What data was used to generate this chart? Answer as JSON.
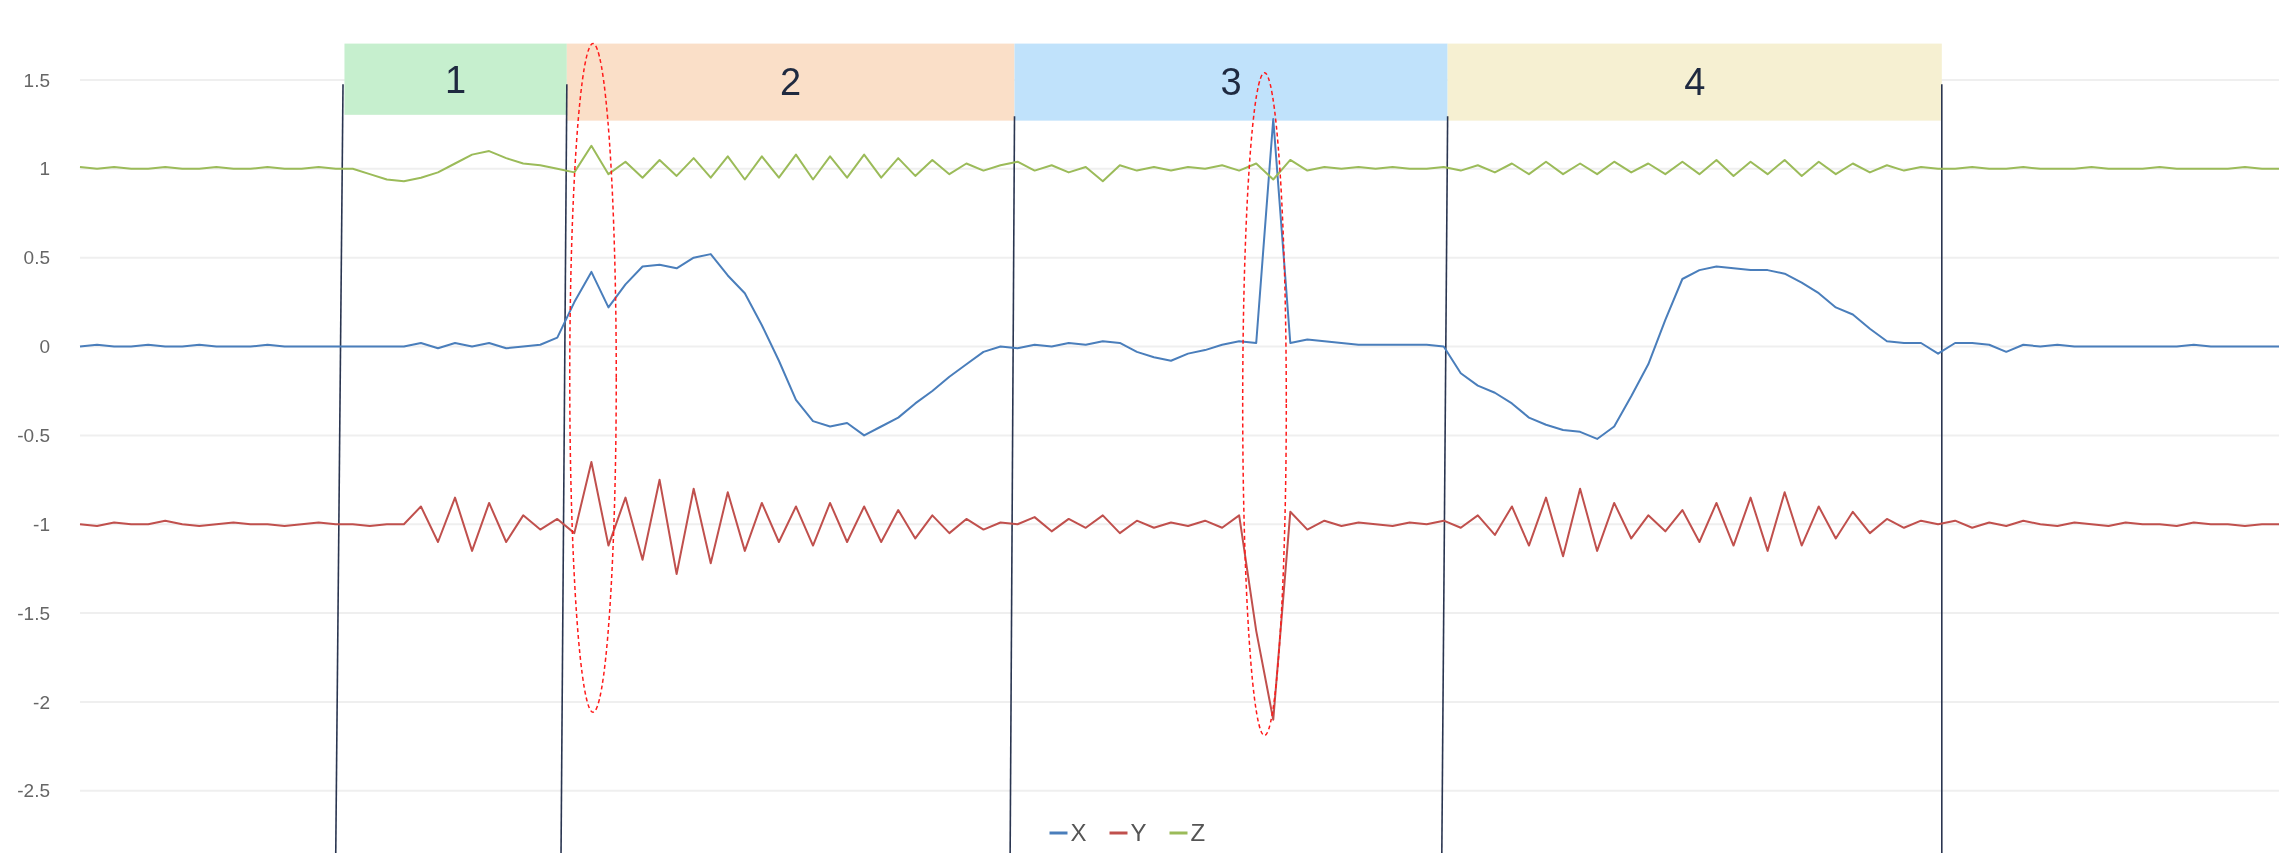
{
  "chart_data": {
    "type": "line",
    "categories": [
      null,
      null,
      null,
      null,
      null,
      null,
      null,
      null,
      null,
      null,
      null,
      null,
      null,
      null,
      null,
      null,
      null,
      null,
      null,
      null,
      null,
      null,
      null,
      null,
      null,
      null,
      null,
      null,
      null,
      null,
      null,
      null,
      null,
      null,
      null,
      null,
      null,
      null,
      null,
      null,
      null,
      null,
      null,
      null,
      null,
      null,
      null,
      null,
      null,
      null,
      null,
      null,
      null,
      null,
      null,
      null,
      null,
      null,
      null,
      null,
      null,
      null,
      null,
      null,
      null,
      null,
      null,
      null,
      null,
      null,
      null,
      null,
      null,
      null,
      null,
      null,
      null,
      null,
      null,
      null,
      null,
      null,
      null,
      null,
      null,
      null,
      null,
      null,
      null,
      null,
      null,
      null,
      null,
      null,
      null,
      null,
      null,
      null,
      null,
      null,
      null,
      null,
      null,
      null,
      null,
      null,
      null,
      null,
      null,
      null,
      null,
      null,
      null,
      null,
      null,
      null,
      null,
      null,
      null,
      null,
      null,
      null,
      null,
      null,
      null,
      null,
      null,
      null,
      null,
      null
    ],
    "series": [
      {
        "name": "X",
        "color": "#4a7ebb",
        "values": [
          0,
          0.01,
          0,
          0,
          0.01,
          0,
          0,
          0.01,
          0,
          0,
          0,
          0.01,
          0,
          0,
          0,
          0,
          0,
          0,
          0,
          0,
          0.02,
          -0.01,
          0.02,
          0,
          0.02,
          -0.01,
          0,
          0.01,
          0.05,
          0.25,
          0.42,
          0.22,
          0.35,
          0.45,
          0.46,
          0.44,
          0.5,
          0.52,
          0.4,
          0.3,
          0.12,
          -0.08,
          -0.3,
          -0.42,
          -0.45,
          -0.43,
          -0.5,
          -0.45,
          -0.4,
          -0.32,
          -0.25,
          -0.17,
          -0.1,
          -0.03,
          0,
          -0.01,
          0.01,
          0,
          0.02,
          0.01,
          0.03,
          0.02,
          -0.03,
          -0.06,
          -0.08,
          -0.04,
          -0.02,
          0.01,
          0.03,
          0.02,
          1.28,
          0.02,
          0.04,
          0.03,
          0.02,
          0.01,
          0.01,
          0.01,
          0.01,
          0.01,
          0,
          -0.15,
          -0.22,
          -0.26,
          -0.32,
          -0.4,
          -0.44,
          -0.47,
          -0.48,
          -0.52,
          -0.45,
          -0.28,
          -0.1,
          0.15,
          0.38,
          0.43,
          0.45,
          0.44,
          0.43,
          0.43,
          0.41,
          0.36,
          0.3,
          0.22,
          0.18,
          0.1,
          0.03,
          0.02,
          0.02,
          -0.04,
          0.02,
          0.02,
          0.01,
          -0.03,
          0.01,
          0,
          0.01,
          0,
          0,
          0,
          0,
          0,
          0,
          0,
          0.01,
          0,
          0,
          0,
          0,
          0
        ]
      },
      {
        "name": "Y",
        "color": "#c0504d",
        "values": [
          -1,
          -1.01,
          -0.99,
          -1,
          -1,
          -0.98,
          -1,
          -1.01,
          -1,
          -0.99,
          -1,
          -1,
          -1.01,
          -1,
          -0.99,
          -1,
          -1,
          -1.01,
          -1,
          -1,
          -0.9,
          -1.1,
          -0.85,
          -1.15,
          -0.88,
          -1.1,
          -0.95,
          -1.03,
          -0.97,
          -1.05,
          -0.65,
          -1.12,
          -0.85,
          -1.2,
          -0.75,
          -1.28,
          -0.8,
          -1.22,
          -0.82,
          -1.15,
          -0.88,
          -1.1,
          -0.9,
          -1.12,
          -0.88,
          -1.1,
          -0.9,
          -1.1,
          -0.92,
          -1.08,
          -0.95,
          -1.05,
          -0.97,
          -1.03,
          -0.99,
          -1,
          -0.96,
          -1.04,
          -0.97,
          -1.02,
          -0.95,
          -1.05,
          -0.98,
          -1.02,
          -0.99,
          -1.01,
          -0.98,
          -1.02,
          -0.95,
          -1.6,
          -2.1,
          -0.93,
          -1.03,
          -0.98,
          -1.01,
          -0.99,
          -1,
          -1.01,
          -0.99,
          -1,
          -0.98,
          -1.02,
          -0.95,
          -1.06,
          -0.9,
          -1.12,
          -0.85,
          -1.18,
          -0.8,
          -1.15,
          -0.88,
          -1.08,
          -0.95,
          -1.04,
          -0.92,
          -1.1,
          -0.88,
          -1.12,
          -0.85,
          -1.15,
          -0.82,
          -1.12,
          -0.9,
          -1.08,
          -0.93,
          -1.05,
          -0.97,
          -1.02,
          -0.98,
          -1,
          -0.98,
          -1.02,
          -0.99,
          -1.01,
          -0.98,
          -1,
          -1.01,
          -0.99,
          -1,
          -1.01,
          -0.99,
          -1,
          -1,
          -1.01,
          -0.99,
          -1,
          -1,
          -1.01,
          -1,
          -1
        ]
      },
      {
        "name": "Z",
        "color": "#9bbb59",
        "values": [
          1.01,
          1,
          1.01,
          1,
          1,
          1.01,
          1,
          1,
          1.01,
          1,
          1,
          1.01,
          1,
          1,
          1.01,
          1,
          1,
          0.97,
          0.94,
          0.93,
          0.95,
          0.98,
          1.03,
          1.08,
          1.1,
          1.06,
          1.03,
          1.02,
          1,
          0.98,
          1.13,
          0.97,
          1.04,
          0.95,
          1.05,
          0.96,
          1.06,
          0.95,
          1.07,
          0.94,
          1.07,
          0.95,
          1.08,
          0.94,
          1.07,
          0.95,
          1.08,
          0.95,
          1.06,
          0.96,
          1.05,
          0.97,
          1.03,
          0.99,
          1.02,
          1.04,
          0.99,
          1.02,
          0.98,
          1.01,
          0.93,
          1.02,
          0.99,
          1.01,
          0.99,
          1.01,
          1,
          1.02,
          0.99,
          1.03,
          0.94,
          1.05,
          0.99,
          1.01,
          1,
          1.01,
          1,
          1.01,
          1,
          1,
          1.01,
          0.99,
          1.02,
          0.98,
          1.03,
          0.97,
          1.04,
          0.97,
          1.03,
          0.97,
          1.04,
          0.98,
          1.03,
          0.97,
          1.04,
          0.97,
          1.05,
          0.96,
          1.04,
          0.97,
          1.05,
          0.96,
          1.04,
          0.97,
          1.03,
          0.98,
          1.02,
          0.99,
          1.01,
          1,
          1,
          1.01,
          1,
          1,
          1.01,
          1,
          1,
          1,
          1.01,
          1,
          1,
          1,
          1.01,
          1,
          1,
          1,
          1,
          1.01,
          1,
          1
        ]
      }
    ],
    "ylim": [
      -2.85,
      1.95
    ],
    "yticks": [
      -2.5,
      -2,
      -1.5,
      -1,
      -0.5,
      0,
      0.5,
      1,
      1.5
    ],
    "grid": "y",
    "legend": "bottom",
    "annotations": [
      "1",
      "2",
      "3",
      "4"
    ]
  }
}
